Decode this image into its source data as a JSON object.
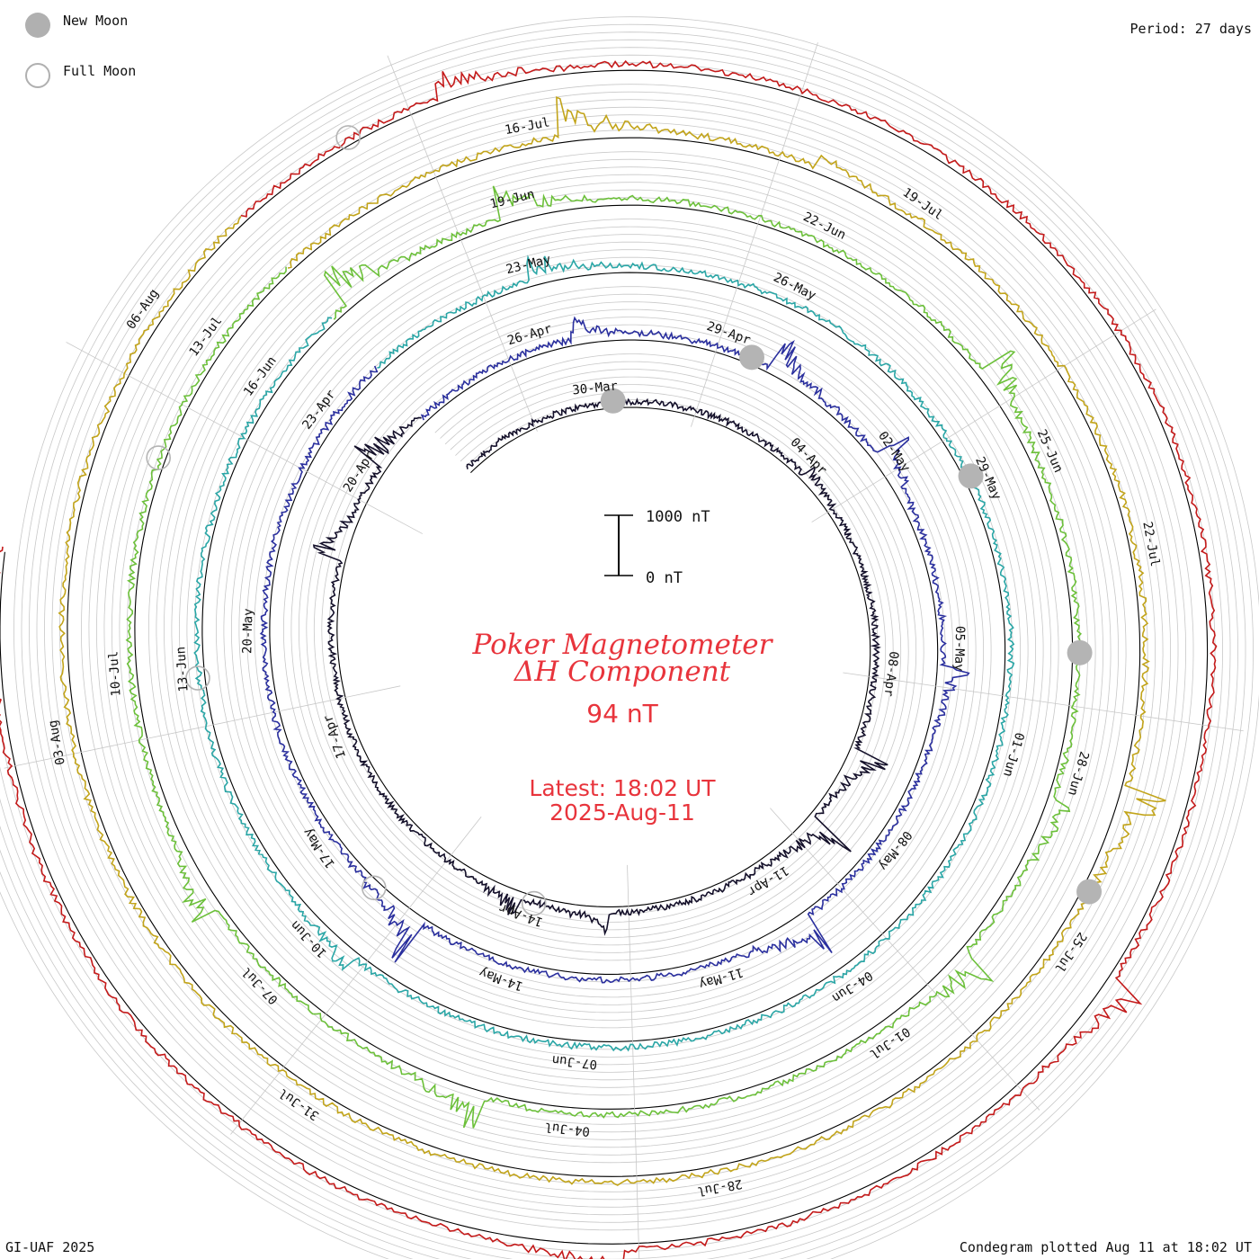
{
  "legend": {
    "new_moon": "New Moon",
    "full_moon": "Full Moon"
  },
  "period": "Period: 27 days",
  "footer": {
    "left": "GI-UAF 2025",
    "right": "Condegram plotted Aug 11 at 18:02 UT"
  },
  "scale": {
    "top_label": "1000 nT",
    "bottom_label": "0 nT"
  },
  "center": {
    "title_line1": "Poker Magnetometer",
    "title_line2": "ΔH Component",
    "value": "94 nT",
    "latest": "Latest: 18:02 UT",
    "date": "2025-Aug-11"
  },
  "colors": {
    "title": "#e8343c",
    "grid": "#c8c8c8",
    "moon": "#b4b4b4"
  },
  "chart_data": {
    "type": "line",
    "subtype": "spiral condegram",
    "title": "Poker Magnetometer ΔH Component",
    "period_days": 27,
    "units": "nT",
    "scale_bar_nT": [
      0,
      1000
    ],
    "start_date": "2025-Mar-26",
    "latest": "2025-Aug-11 18:02 UT",
    "current_value_nT": 94,
    "rotations": [
      {
        "name": "rotation 1",
        "color": "#14102a",
        "labels": [
          "30-Mar",
          "04-Apr",
          "08-Apr",
          "11-Apr",
          "14-Apr",
          "17-Apr",
          "20-Apr"
        ]
      },
      {
        "name": "rotation 2",
        "color": "#2a2f9e",
        "labels": [
          "26-Apr",
          "29-Apr",
          "02-May",
          "05-May",
          "08-May",
          "11-May",
          "14-May",
          "17-May",
          "20-May",
          "23-Apr"
        ]
      },
      {
        "name": "rotation 3",
        "color": "#2aa6a6",
        "labels": [
          "23-May",
          "26-May",
          "29-May",
          "01-Jun",
          "04-Jun",
          "07-Jun",
          "10-Jun",
          "13-Jun",
          "16-Jun"
        ]
      },
      {
        "name": "rotation 4",
        "color": "#6cc03a",
        "labels": [
          "19-Jun",
          "22-Jun",
          "25-Jun",
          "28-Jun",
          "01-Jul",
          "04-Jul",
          "07-Jul",
          "10-Jul",
          "13-Jul"
        ]
      },
      {
        "name": "rotation 5",
        "color": "#c2a41a",
        "labels": [
          "16-Jul",
          "19-Jul",
          "22-Jul",
          "25-Jul",
          "28-Jul",
          "31-Jul",
          "03-Aug",
          "06-Aug"
        ]
      },
      {
        "name": "rotation 6",
        "color": "#c41a1a",
        "labels": []
      }
    ],
    "new_moon_dates": [
      "2025-Mar-29",
      "2025-Apr-27",
      "2025-May-27",
      "2025-Jun-25",
      "2025-Jul-24"
    ],
    "full_moon_dates": [
      "2025-Apr-13",
      "2025-May-12",
      "2025-Jun-11",
      "2025-Jul-10",
      "2025-Aug-09"
    ]
  }
}
